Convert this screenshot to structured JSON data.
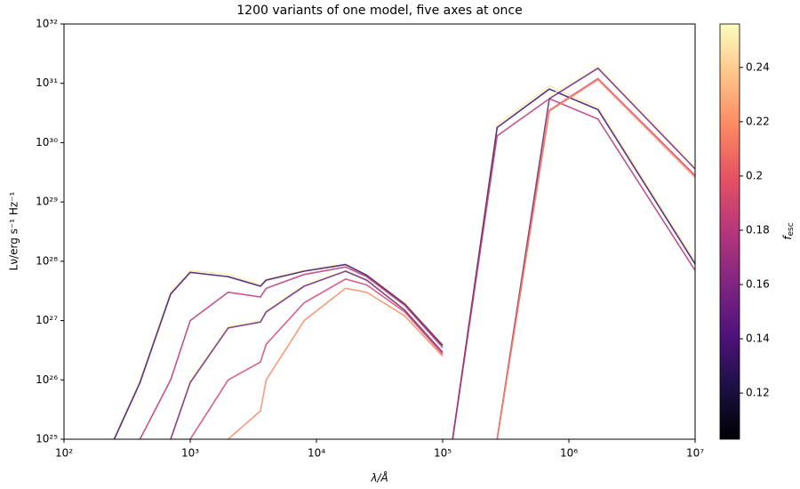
{
  "chart_data": {
    "type": "line",
    "title": "1200 variants of one model, five axes at once",
    "xlabel": "λ/Å",
    "ylabel": "Lν/erg s⁻¹ Hz⁻¹",
    "xscale": "log",
    "yscale": "log",
    "xlim": [
      100,
      10000000
    ],
    "ylim": [
      1e+25,
      1e+32
    ],
    "xticks": [
      {
        "value": 100,
        "label": "10²"
      },
      {
        "value": 1000,
        "label": "10³"
      },
      {
        "value": 10000,
        "label": "10⁴"
      },
      {
        "value": 100000,
        "label": "10⁵"
      },
      {
        "value": 1000000,
        "label": "10⁶"
      },
      {
        "value": 10000000,
        "label": "10⁷"
      }
    ],
    "yticks": [
      {
        "value": 1e+25,
        "label": "10²⁵"
      },
      {
        "value": 1e+26,
        "label": "10²⁶"
      },
      {
        "value": 1e+27,
        "label": "10²⁷"
      },
      {
        "value": 1e+28,
        "label": "10²⁸"
      },
      {
        "value": 1e+29,
        "label": "10²⁹"
      },
      {
        "value": 1e+30,
        "label": "10³⁰"
      },
      {
        "value": 1e+31,
        "label": "10³¹"
      },
      {
        "value": 1e+32,
        "label": "10³²"
      }
    ],
    "x": [
      250,
      400,
      700,
      1000,
      2000,
      3600,
      4000,
      8000,
      17000,
      25000,
      50000,
      100000,
      110000,
      120000,
      270000,
      700000,
      1700000,
      10000000
    ],
    "series": [
      {
        "color": "#feecae",
        "values": [
          1e+25,
          1e+26,
          3e+27,
          7e+27,
          6e+27,
          4e+27,
          5e+27,
          7e+27,
          9e+27,
          6e+27,
          2e+27,
          4e+26,
          null,
          1e+25,
          2e+30,
          9e+30,
          4e+30,
          1e+28
        ]
      },
      {
        "color": "#3b0f70",
        "values": [
          1e+25,
          9e+25,
          2.8e+27,
          6.5e+27,
          5.5e+27,
          3.8e+27,
          4.8e+27,
          6.8e+27,
          8.8e+27,
          5.8e+27,
          1.9e+27,
          3.8e+26,
          null,
          1e+25,
          1.8e+30,
          8e+30,
          3.6e+30,
          9e+27
        ]
      },
      {
        "color": "#b73779",
        "values": [
          null,
          1e+25,
          1e+26,
          1e+27,
          3e+27,
          2.5e+27,
          3.5e+27,
          6e+27,
          8e+27,
          5.5e+27,
          1.8e+27,
          3.5e+26,
          null,
          1e+25,
          1.3e+30,
          5.5e+30,
          2.5e+30,
          7e+27
        ]
      },
      {
        "color": "#fcfdbf",
        "values": [
          null,
          null,
          1e+25,
          1e+26,
          8e+26,
          1e+27,
          1.5e+27,
          4e+27,
          7e+27,
          5e+27,
          1.6e+27,
          3e+26,
          null,
          null,
          1e+25,
          6e+30,
          2e+31,
          4e+29
        ]
      },
      {
        "color": "#721f81",
        "values": [
          null,
          null,
          1e+25,
          9e+25,
          7.5e+26,
          9.5e+26,
          1.4e+27,
          3.8e+27,
          6.8e+27,
          4.8e+27,
          1.5e+27,
          2.9e+26,
          null,
          null,
          1e+25,
          5.5e+30,
          1.8e+31,
          3.6e+29
        ]
      },
      {
        "color": "#d3436e",
        "values": [
          null,
          null,
          null,
          1e+25,
          1e+26,
          2e+26,
          4e+26,
          2e+27,
          5e+27,
          4e+27,
          1.4e+27,
          2.7e+26,
          null,
          null,
          1e+25,
          3.5e+30,
          1.2e+31,
          2.8e+29
        ]
      },
      {
        "color": "#fb8861",
        "values": [
          null,
          null,
          null,
          null,
          1e+25,
          3e+25,
          1e+26,
          1e+27,
          3.5e+27,
          3e+27,
          1.2e+27,
          2.5e+26,
          null,
          null,
          1e+25,
          3.4e+30,
          1.15e+31,
          2.6e+29
        ]
      }
    ],
    "colorbar": {
      "label": "f",
      "label_sub": "esc",
      "colormap": "magma",
      "lim": [
        0.103,
        0.256
      ],
      "ticks": [
        0.12,
        0.14,
        0.16,
        0.18,
        0.2,
        0.22,
        0.24
      ]
    }
  }
}
